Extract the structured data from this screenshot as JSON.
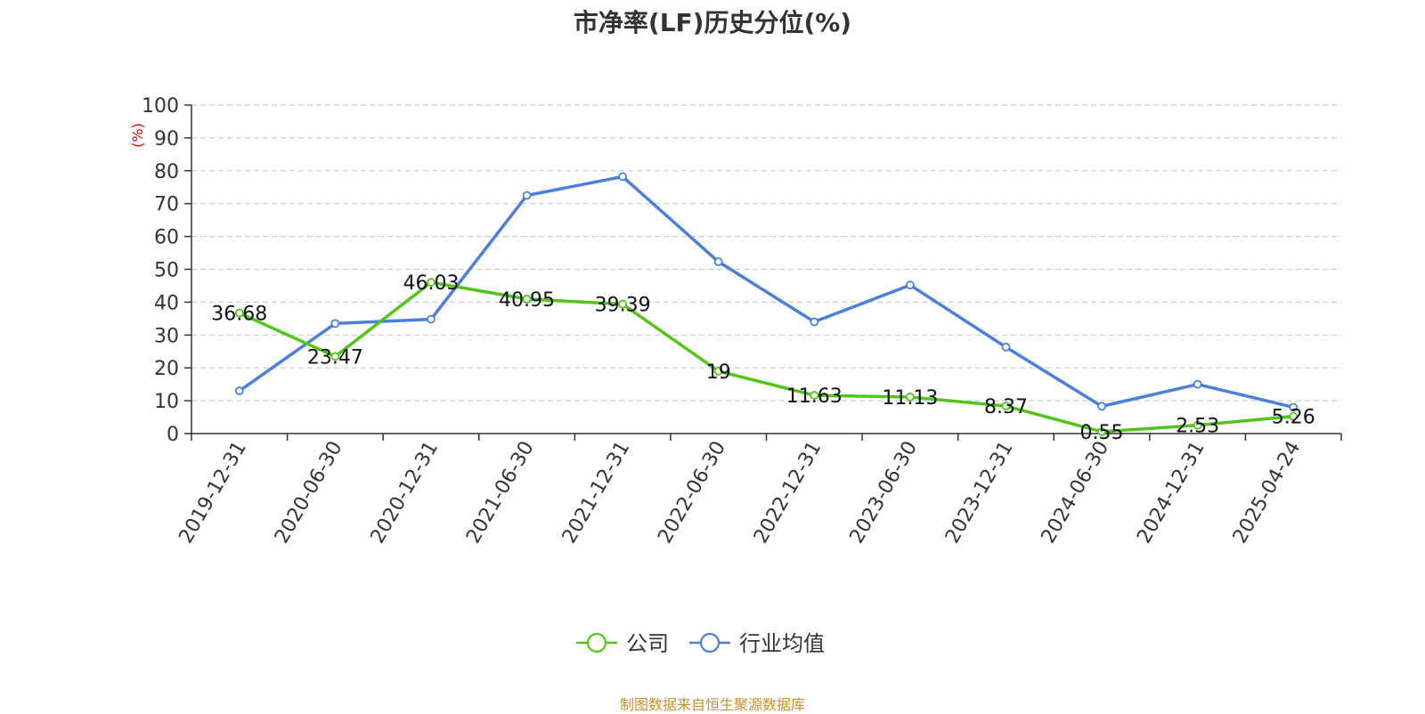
{
  "chart_data": {
    "type": "line",
    "title": "市净率(LF)历史分位(%)",
    "ylabel": "(%)",
    "ylim": [
      0,
      100
    ],
    "yticks": [
      0,
      10,
      20,
      30,
      40,
      50,
      60,
      70,
      80,
      90,
      100
    ],
    "grid": true,
    "legend_position": "bottom",
    "categories": [
      "2019-12-31",
      "2020-06-30",
      "2020-12-31",
      "2021-06-30",
      "2021-12-31",
      "2022-06-30",
      "2022-12-31",
      "2023-06-30",
      "2023-12-31",
      "2024-06-30",
      "2024-12-31",
      "2025-04-24"
    ],
    "series": [
      {
        "name": "公司",
        "color": "#52c41a",
        "show_labels": true,
        "labels": [
          "36.68",
          "23.47",
          "46.03",
          "40.95",
          "39.39",
          "19",
          "11.63",
          "11.13",
          "8.37",
          "0.55",
          "2.53",
          "5.26"
        ],
        "values": [
          36.68,
          23.47,
          46.03,
          40.95,
          39.39,
          19,
          11.63,
          11.13,
          8.37,
          0.55,
          2.53,
          5.26
        ]
      },
      {
        "name": "行业均值",
        "color": "#4a7fdd",
        "show_labels": false,
        "values": [
          13,
          33.5,
          34.8,
          72.5,
          78.2,
          52.3,
          34,
          45.2,
          26.3,
          8.3,
          15,
          8
        ]
      }
    ]
  },
  "source": "制图数据来自恒生聚源数据库"
}
